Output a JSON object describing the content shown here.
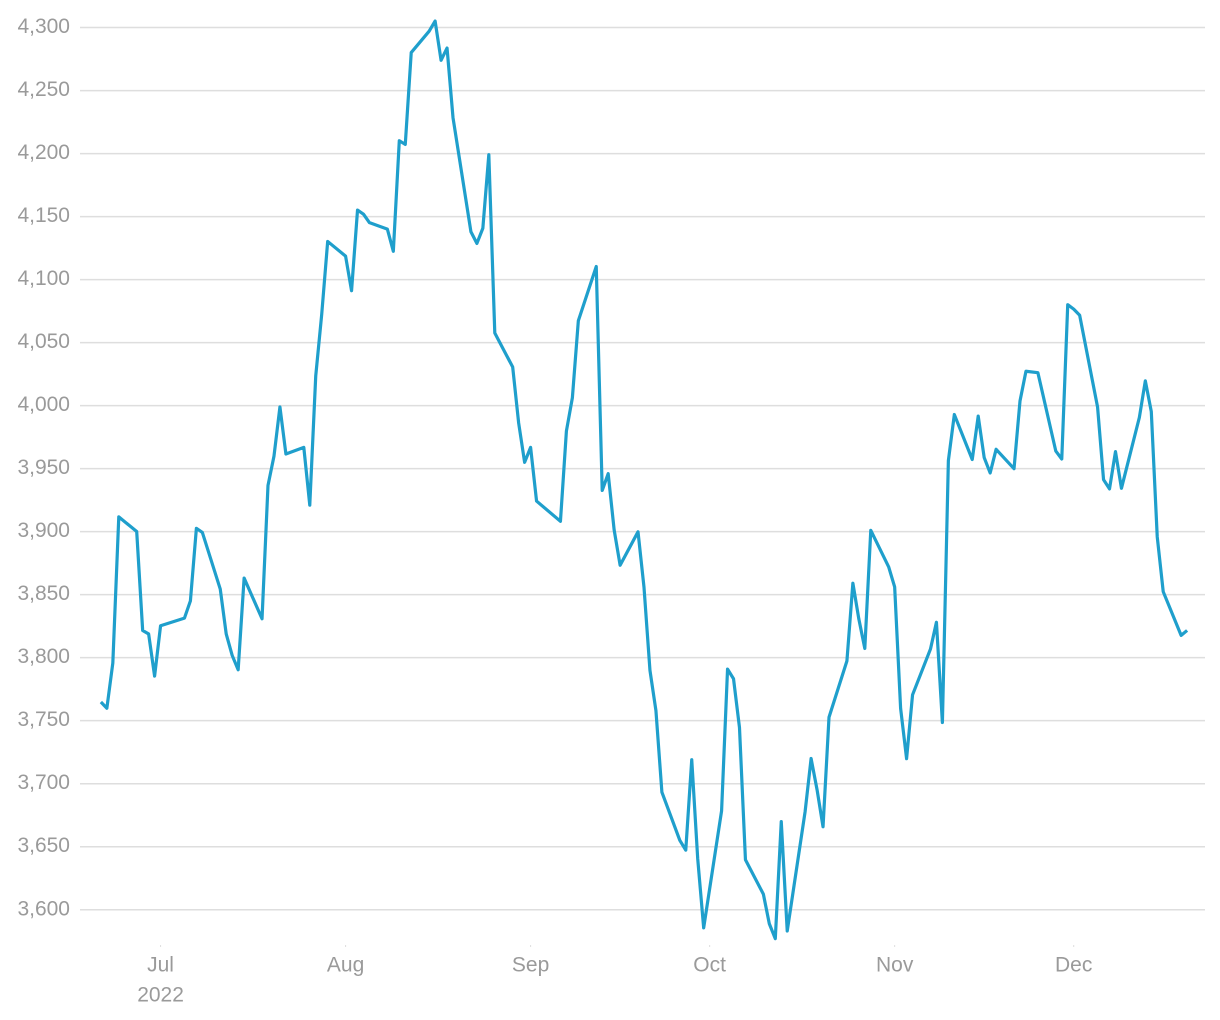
{
  "chart_data": {
    "type": "line",
    "x": [
      172,
      173,
      174,
      175,
      178,
      179,
      180,
      181,
      182,
      186,
      187,
      188,
      189,
      192,
      193,
      194,
      195,
      196,
      199,
      200,
      201,
      202,
      203,
      206,
      207,
      208,
      209,
      210,
      213,
      214,
      215,
      216,
      217,
      220,
      221,
      222,
      223,
      224,
      227,
      228,
      229,
      230,
      231,
      234,
      235,
      236,
      237,
      238,
      241,
      242,
      243,
      244,
      245,
      249,
      250,
      251,
      252,
      255,
      256,
      257,
      258,
      259,
      262,
      263,
      264,
      265,
      266,
      269,
      270,
      271,
      272,
      273,
      276,
      277,
      278,
      279,
      280,
      283,
      284,
      285,
      286,
      287,
      290,
      291,
      292,
      293,
      294,
      297,
      298,
      299,
      300,
      301,
      304,
      305,
      306,
      307,
      308,
      311,
      312,
      313,
      314,
      315,
      318,
      319,
      320,
      321,
      322,
      325,
      326,
      327,
      329,
      332,
      333,
      334,
      335,
      336,
      339,
      340,
      341,
      342,
      343,
      346,
      347,
      348,
      349,
      350,
      353,
      354
    ],
    "series": [
      {
        "color": "#1f9fcc",
        "values": [
          3764.79,
          3759.89,
          3795.73,
          3911.74,
          3900.11,
          3821.55,
          3818.83,
          3785.38,
          3825.33,
          3831.39,
          3845.08,
          3902.62,
          3899.38,
          3854.43,
          3818.8,
          3801.78,
          3790.38,
          3863.16,
          3830.85,
          3936.69,
          3959.9,
          3998.95,
          3961.63,
          3966.84,
          3921.05,
          4023.61,
          4072.43,
          4130.29,
          4118.63,
          4091.19,
          4155.17,
          4151.94,
          4145.19,
          4140.06,
          4122.47,
          4210.24,
          4207.27,
          4280.15,
          4297.14,
          4305.2,
          4274.04,
          4283.74,
          4228.48,
          4137.99,
          4128.73,
          4140.77,
          4199.12,
          4057.66,
          4030.61,
          3986.16,
          3955.0,
          3966.85,
          3924.26,
          3908.19,
          3979.87,
          4006.18,
          4067.36,
          4110.41,
          3932.69,
          3946.01,
          3901.35,
          3873.33,
          3899.89,
          3855.93,
          3789.93,
          3757.99,
          3693.23,
          3655.04,
          3647.29,
          3719.04,
          3640.47,
          3585.62,
          3678.43,
          3790.93,
          3783.28,
          3744.52,
          3639.66,
          3612.39,
          3588.84,
          3577.03,
          3669.91,
          3583.07,
          3677.95,
          3719.98,
          3695.16,
          3665.78,
          3752.75,
          3797.34,
          3859.11,
          3830.6,
          3807.3,
          3901.06,
          3871.98,
          3856.1,
          3759.69,
          3719.89,
          3770.55,
          3806.8,
          3828.11,
          3748.57,
          3956.37,
          3992.93,
          3957.25,
          3991.73,
          3958.79,
          3946.56,
          3965.34,
          3949.94,
          4003.58,
          4027.26,
          4026.12,
          3963.94,
          3957.63,
          4080.11,
          4076.57,
          4071.7,
          3998.84,
          3941.26,
          3933.92,
          3963.51,
          3934.38,
          3990.56,
          4019.65,
          3995.32,
          3895.75,
          3852.36,
          3817.66,
          3821.62
        ]
      }
    ],
    "xlim": [
      168.5,
      357
    ],
    "xticks": [
      {
        "value": 182,
        "label": "Jul"
      },
      {
        "value": 213,
        "label": "Aug"
      },
      {
        "value": 244,
        "label": "Sep"
      },
      {
        "value": 274,
        "label": "Oct"
      },
      {
        "value": 305,
        "label": "Nov"
      },
      {
        "value": 335,
        "label": "Dec"
      }
    ],
    "x_year_label": "2022",
    "ylim": [
      3572,
      4306
    ],
    "yticks": [
      {
        "value": 3600,
        "label": "3,600"
      },
      {
        "value": 3650,
        "label": "3,650"
      },
      {
        "value": 3700,
        "label": "3,700"
      },
      {
        "value": 3750,
        "label": "3,750"
      },
      {
        "value": 3800,
        "label": "3,800"
      },
      {
        "value": 3850,
        "label": "3,850"
      },
      {
        "value": 3900,
        "label": "3,900"
      },
      {
        "value": 3950,
        "label": "3,950"
      },
      {
        "value": 4000,
        "label": "4,000"
      },
      {
        "value": 4050,
        "label": "4,050"
      },
      {
        "value": 4100,
        "label": "4,100"
      },
      {
        "value": 4150,
        "label": "4,150"
      },
      {
        "value": 4200,
        "label": "4,200"
      },
      {
        "value": 4250,
        "label": "4,250"
      },
      {
        "value": 4300,
        "label": "4,300"
      }
    ],
    "grid": true
  }
}
